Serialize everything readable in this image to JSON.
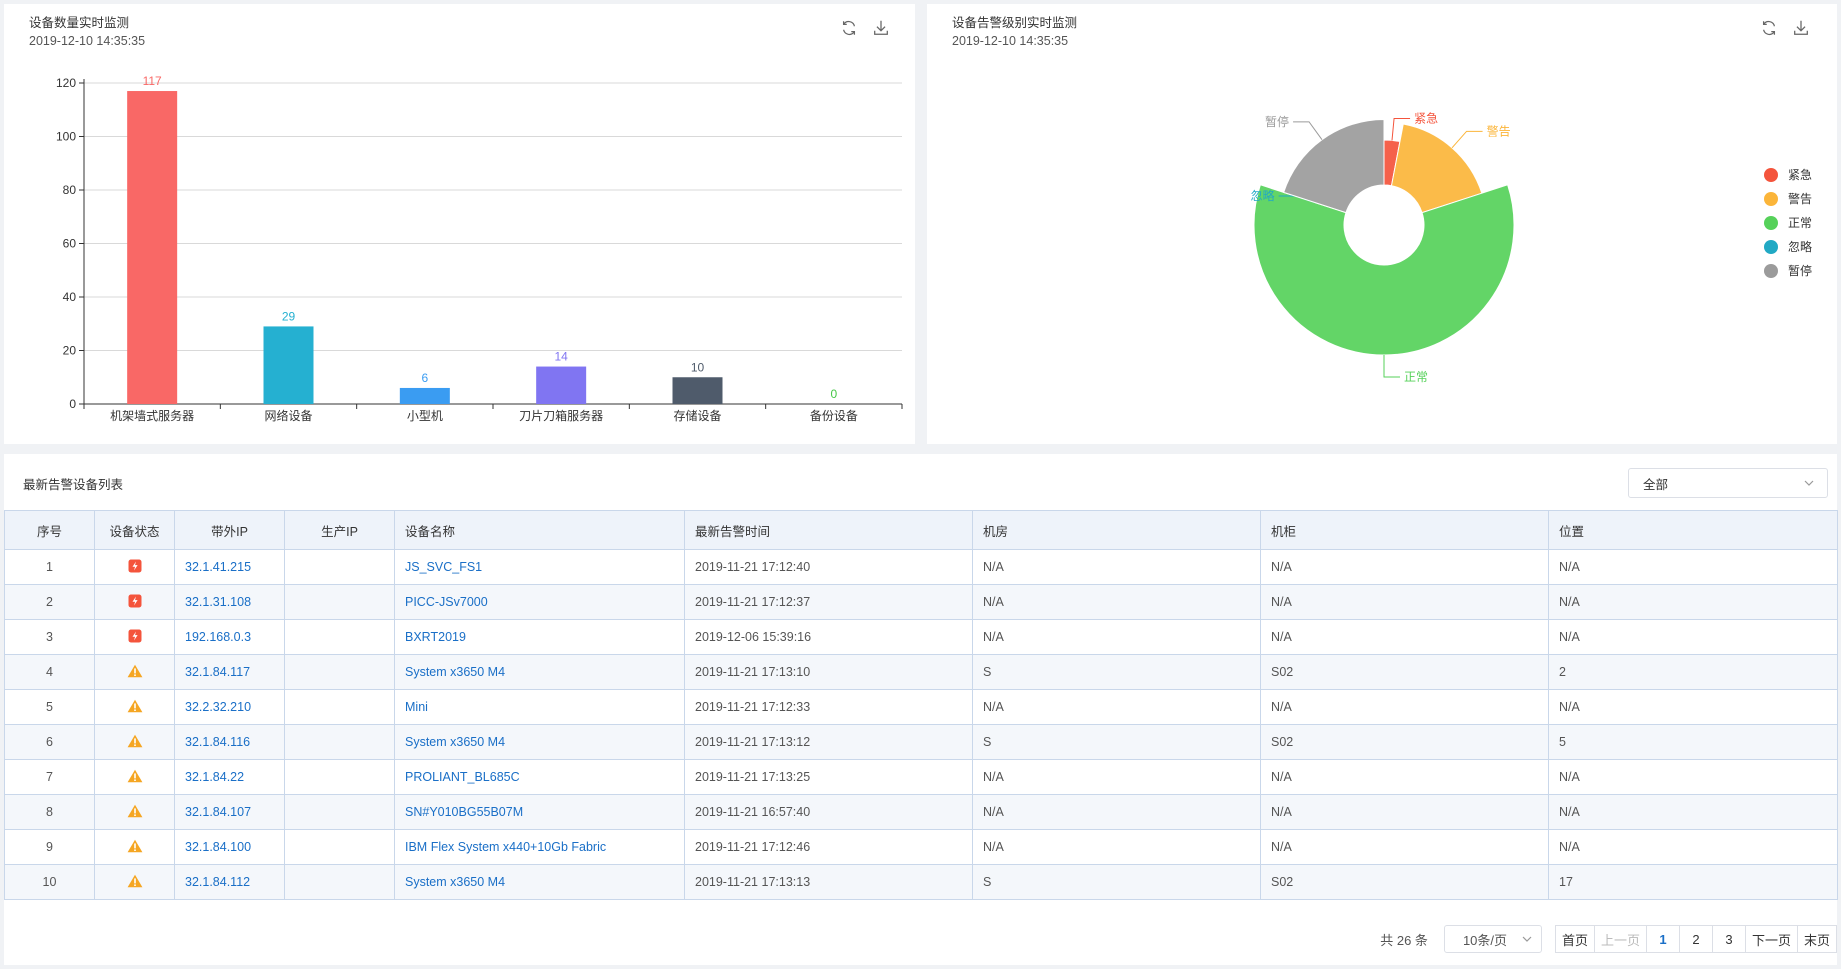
{
  "bar_panel": {
    "title": "设备数量实时监测",
    "time": "2019-12-10 14:35:35"
  },
  "pie_panel": {
    "title": "设备告警级别实时监测",
    "time": "2019-12-10 14:35:35"
  },
  "icons": {
    "refresh": "refresh-icon",
    "download": "download-icon"
  },
  "chart_data": [
    {
      "type": "bar",
      "categories": [
        "机架墙式服务器",
        "网络设备",
        "小型机",
        "刀片刀箱服务器",
        "存储设备",
        "备份设备"
      ],
      "values": [
        117,
        29,
        6,
        14,
        10,
        0
      ],
      "colors": [
        "#f96866",
        "#25b0d1",
        "#3a9cf2",
        "#8075f2",
        "#4f5b6b",
        "#45c746"
      ],
      "ylim": [
        0,
        120
      ],
      "yticks": [
        0,
        20,
        40,
        60,
        80,
        100,
        120
      ],
      "grid": true
    },
    {
      "type": "pie",
      "donut": true,
      "rose": true,
      "labels": [
        "紧急",
        "警告",
        "正常",
        "忽略",
        "暂停"
      ],
      "values": [
        3,
        17,
        60,
        0,
        20
      ],
      "colors": [
        "#f4543c",
        "#fbb53a",
        "#56d15a",
        "#21a9c4",
        "#9b9b9b"
      ],
      "legend_position": "right"
    }
  ],
  "table": {
    "title": "最新告警设备列表",
    "filter_value": "全部",
    "columns": [
      "序号",
      "设备状态",
      "带外IP",
      "生产IP",
      "设备名称",
      "最新告警时间",
      "机房",
      "机柜",
      "位置"
    ],
    "rows": [
      {
        "no": "1",
        "status": "urgent",
        "oob_ip": "32.1.41.215",
        "prod_ip": "",
        "name": "JS_SVC_FS1",
        "time": "2019-11-21 17:12:40",
        "room": "N/A",
        "cabinet": "N/A",
        "position": "N/A"
      },
      {
        "no": "2",
        "status": "urgent",
        "oob_ip": "32.1.31.108",
        "prod_ip": "",
        "name": "PICC-JSv7000",
        "time": "2019-11-21 17:12:37",
        "room": "N/A",
        "cabinet": "N/A",
        "position": "N/A"
      },
      {
        "no": "3",
        "status": "urgent",
        "oob_ip": "192.168.0.3",
        "prod_ip": "",
        "name": "BXRT2019",
        "time": "2019-12-06 15:39:16",
        "room": "N/A",
        "cabinet": "N/A",
        "position": "N/A"
      },
      {
        "no": "4",
        "status": "warning",
        "oob_ip": "32.1.84.117",
        "prod_ip": "",
        "name": "System x3650 M4",
        "time": "2019-11-21 17:13:10",
        "room": "S",
        "cabinet": "S02",
        "position": "2"
      },
      {
        "no": "5",
        "status": "warning",
        "oob_ip": "32.2.32.210",
        "prod_ip": "",
        "name": "Mini",
        "time": "2019-11-21 17:12:33",
        "room": "N/A",
        "cabinet": "N/A",
        "position": "N/A"
      },
      {
        "no": "6",
        "status": "warning",
        "oob_ip": "32.1.84.116",
        "prod_ip": "",
        "name": "System x3650 M4",
        "time": "2019-11-21 17:13:12",
        "room": "S",
        "cabinet": "S02",
        "position": "5"
      },
      {
        "no": "7",
        "status": "warning",
        "oob_ip": "32.1.84.22",
        "prod_ip": "",
        "name": "PROLIANT_BL685C",
        "time": "2019-11-21 17:13:25",
        "room": "N/A",
        "cabinet": "N/A",
        "position": "N/A"
      },
      {
        "no": "8",
        "status": "warning",
        "oob_ip": "32.1.84.107",
        "prod_ip": "",
        "name": "SN#Y010BG55B07M",
        "time": "2019-11-21 16:57:40",
        "room": "N/A",
        "cabinet": "N/A",
        "position": "N/A"
      },
      {
        "no": "9",
        "status": "warning",
        "oob_ip": "32.1.84.100",
        "prod_ip": "",
        "name": "IBM Flex System x440+10Gb Fabric",
        "time": "2019-11-21 17:12:46",
        "room": "N/A",
        "cabinet": "N/A",
        "position": "N/A"
      },
      {
        "no": "10",
        "status": "warning",
        "oob_ip": "32.1.84.112",
        "prod_ip": "",
        "name": "System x3650 M4",
        "time": "2019-11-21 17:13:13",
        "room": "S",
        "cabinet": "S02",
        "position": "17"
      }
    ],
    "status_icons": {
      "urgent": "lightning-badge-icon",
      "warning": "warning-triangle-icon"
    }
  },
  "pagination": {
    "total": "共 26 条",
    "page_size": "10条/页",
    "first": "首页",
    "prev": "上一页",
    "pages": [
      "1",
      "2",
      "3"
    ],
    "current": "1",
    "next": "下一页",
    "last": "末页"
  }
}
